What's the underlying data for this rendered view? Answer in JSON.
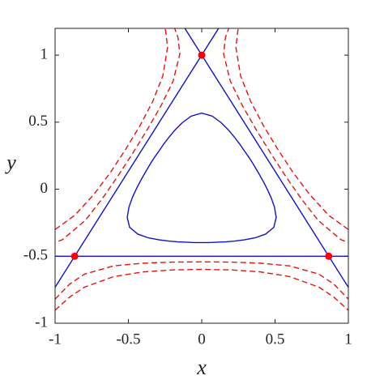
{
  "chart_data": {
    "type": "line",
    "xlabel": "x",
    "ylabel": "y",
    "xlim": [
      -1,
      1
    ],
    "ylim": [
      -1,
      1.2
    ],
    "xticks": [
      -1,
      -0.5,
      0,
      0.5,
      1
    ],
    "yticks": [
      -1,
      -0.5,
      0,
      0.5,
      1
    ],
    "grid": false,
    "box": true,
    "series": [
      {
        "type": "line",
        "color": "#1010d0",
        "dash": false,
        "x": [
          -1,
          0.115
        ],
        "values": [
          -0.732,
          1.2
        ]
      },
      {
        "type": "line",
        "color": "#1010d0",
        "dash": false,
        "x": [
          -0.115,
          1
        ],
        "values": [
          1.2,
          -0.732
        ]
      },
      {
        "type": "line",
        "color": "#1010d0",
        "dash": false,
        "x": [
          -1,
          1
        ],
        "values": [
          -0.5,
          -0.5
        ]
      },
      {
        "type": "line",
        "color": "#1010d0",
        "dash": false,
        "x": [
          0.447,
          0.421,
          0.395,
          0.37,
          0.345,
          0.318,
          0.289,
          0.259,
          0.224,
          0.183,
          0.133,
          0.072,
          0,
          -0.072,
          -0.133,
          -0.183,
          -0.224,
          -0.259,
          -0.289,
          -0.318,
          -0.345,
          -0.37,
          -0.395,
          -0.421,
          -0.447,
          -0.473,
          -0.496,
          -0.508,
          -0.492,
          -0.436,
          -0.363,
          -0.29,
          -0.224,
          -0.163,
          -0.106,
          -0.052,
          0,
          0.052,
          0.106,
          0.163,
          0.224,
          0.29,
          0.363,
          0.436,
          0.492,
          0.508,
          0.496,
          0.473,
          0.447
        ],
        "values": [
          0,
          0.055,
          0.106,
          0.153,
          0.199,
          0.244,
          0.289,
          0.337,
          0.387,
          0.441,
          0.496,
          0.545,
          0.568,
          0.545,
          0.496,
          0.441,
          0.387,
          0.337,
          0.289,
          0.244,
          0.199,
          0.153,
          0.106,
          0.055,
          0,
          -0.062,
          -0.133,
          -0.21,
          -0.284,
          -0.335,
          -0.363,
          -0.378,
          -0.387,
          -0.393,
          -0.395,
          -0.398,
          -0.398,
          -0.398,
          -0.395,
          -0.393,
          -0.387,
          -0.378,
          -0.363,
          -0.335,
          -0.284,
          -0.21,
          -0.133,
          -0.062,
          0
        ]
      },
      {
        "type": "line",
        "color": "#e8120c",
        "dash": true,
        "x": [
          -1,
          -0.9,
          -0.8,
          -0.6,
          -0.4,
          -0.2,
          0,
          0.2,
          0.4,
          0.6,
          0.8,
          0.9,
          1
        ],
        "values": [
          -0.82,
          -0.707,
          -0.634,
          -0.572,
          -0.552,
          -0.544,
          -0.542,
          -0.544,
          -0.552,
          -0.572,
          -0.634,
          -0.707,
          -0.82
        ]
      },
      {
        "type": "line",
        "color": "#e8120c",
        "dash": true,
        "x": [
          -1,
          -0.9,
          -0.8,
          -0.6,
          -0.4,
          -0.2,
          0,
          0.2,
          0.4,
          0.6,
          0.8,
          0.9,
          1
        ],
        "values": [
          -0.903,
          -0.804,
          -0.731,
          -0.652,
          -0.617,
          -0.602,
          -0.598,
          -0.602,
          -0.617,
          -0.652,
          -0.731,
          -0.804,
          -0.903
        ]
      },
      {
        "type": "line",
        "color": "#e8120c",
        "dash": true,
        "x": [
          1.21,
          1.062,
          0.949,
          0.795,
          0.678,
          0.571,
          0.469,
          0.371,
          0.278,
          0.195,
          0.149,
          0.162,
          0.21
        ],
        "values": [
          -0.456,
          -0.425,
          -0.376,
          -0.234,
          -0.07,
          0.099,
          0.271,
          0.445,
          0.622,
          0.806,
          1.01,
          1.133,
          1.276
        ]
      },
      {
        "type": "line",
        "color": "#e8120c",
        "dash": true,
        "x": [
          1.282,
          1.146,
          1.033,
          0.865,
          0.734,
          0.621,
          0.518,
          0.421,
          0.334,
          0.265,
          0.233,
          0.246,
          0.282
        ],
        "values": [
          -0.414,
          -0.377,
          -0.327,
          -0.194,
          -0.037,
          0.128,
          0.299,
          0.474,
          0.655,
          0.846,
          1.059,
          1.181,
          1.318
        ]
      },
      {
        "type": "line",
        "color": "#e8120c",
        "dash": true,
        "x": [
          -1.21,
          -1.062,
          -0.949,
          -0.795,
          -0.678,
          -0.571,
          -0.469,
          -0.371,
          -0.278,
          -0.195,
          -0.149,
          -0.162,
          -0.21
        ],
        "values": [
          -0.456,
          -0.425,
          -0.376,
          -0.234,
          -0.07,
          0.099,
          0.271,
          0.445,
          0.622,
          0.806,
          1.01,
          1.133,
          1.276
        ]
      },
      {
        "type": "line",
        "color": "#e8120c",
        "dash": true,
        "x": [
          -1.282,
          -1.146,
          -1.033,
          -0.865,
          -0.734,
          -0.621,
          -0.518,
          -0.421,
          -0.334,
          -0.265,
          -0.233,
          -0.246,
          -0.282
        ],
        "values": [
          -0.414,
          -0.377,
          -0.327,
          -0.194,
          -0.037,
          0.128,
          0.299,
          0.474,
          0.655,
          0.846,
          1.059,
          1.181,
          1.318
        ]
      },
      {
        "type": "scatter",
        "color": "#ff0000",
        "x": [
          -0.866,
          0,
          0.866
        ],
        "values": [
          -0.5,
          1,
          -0.5
        ]
      }
    ]
  }
}
